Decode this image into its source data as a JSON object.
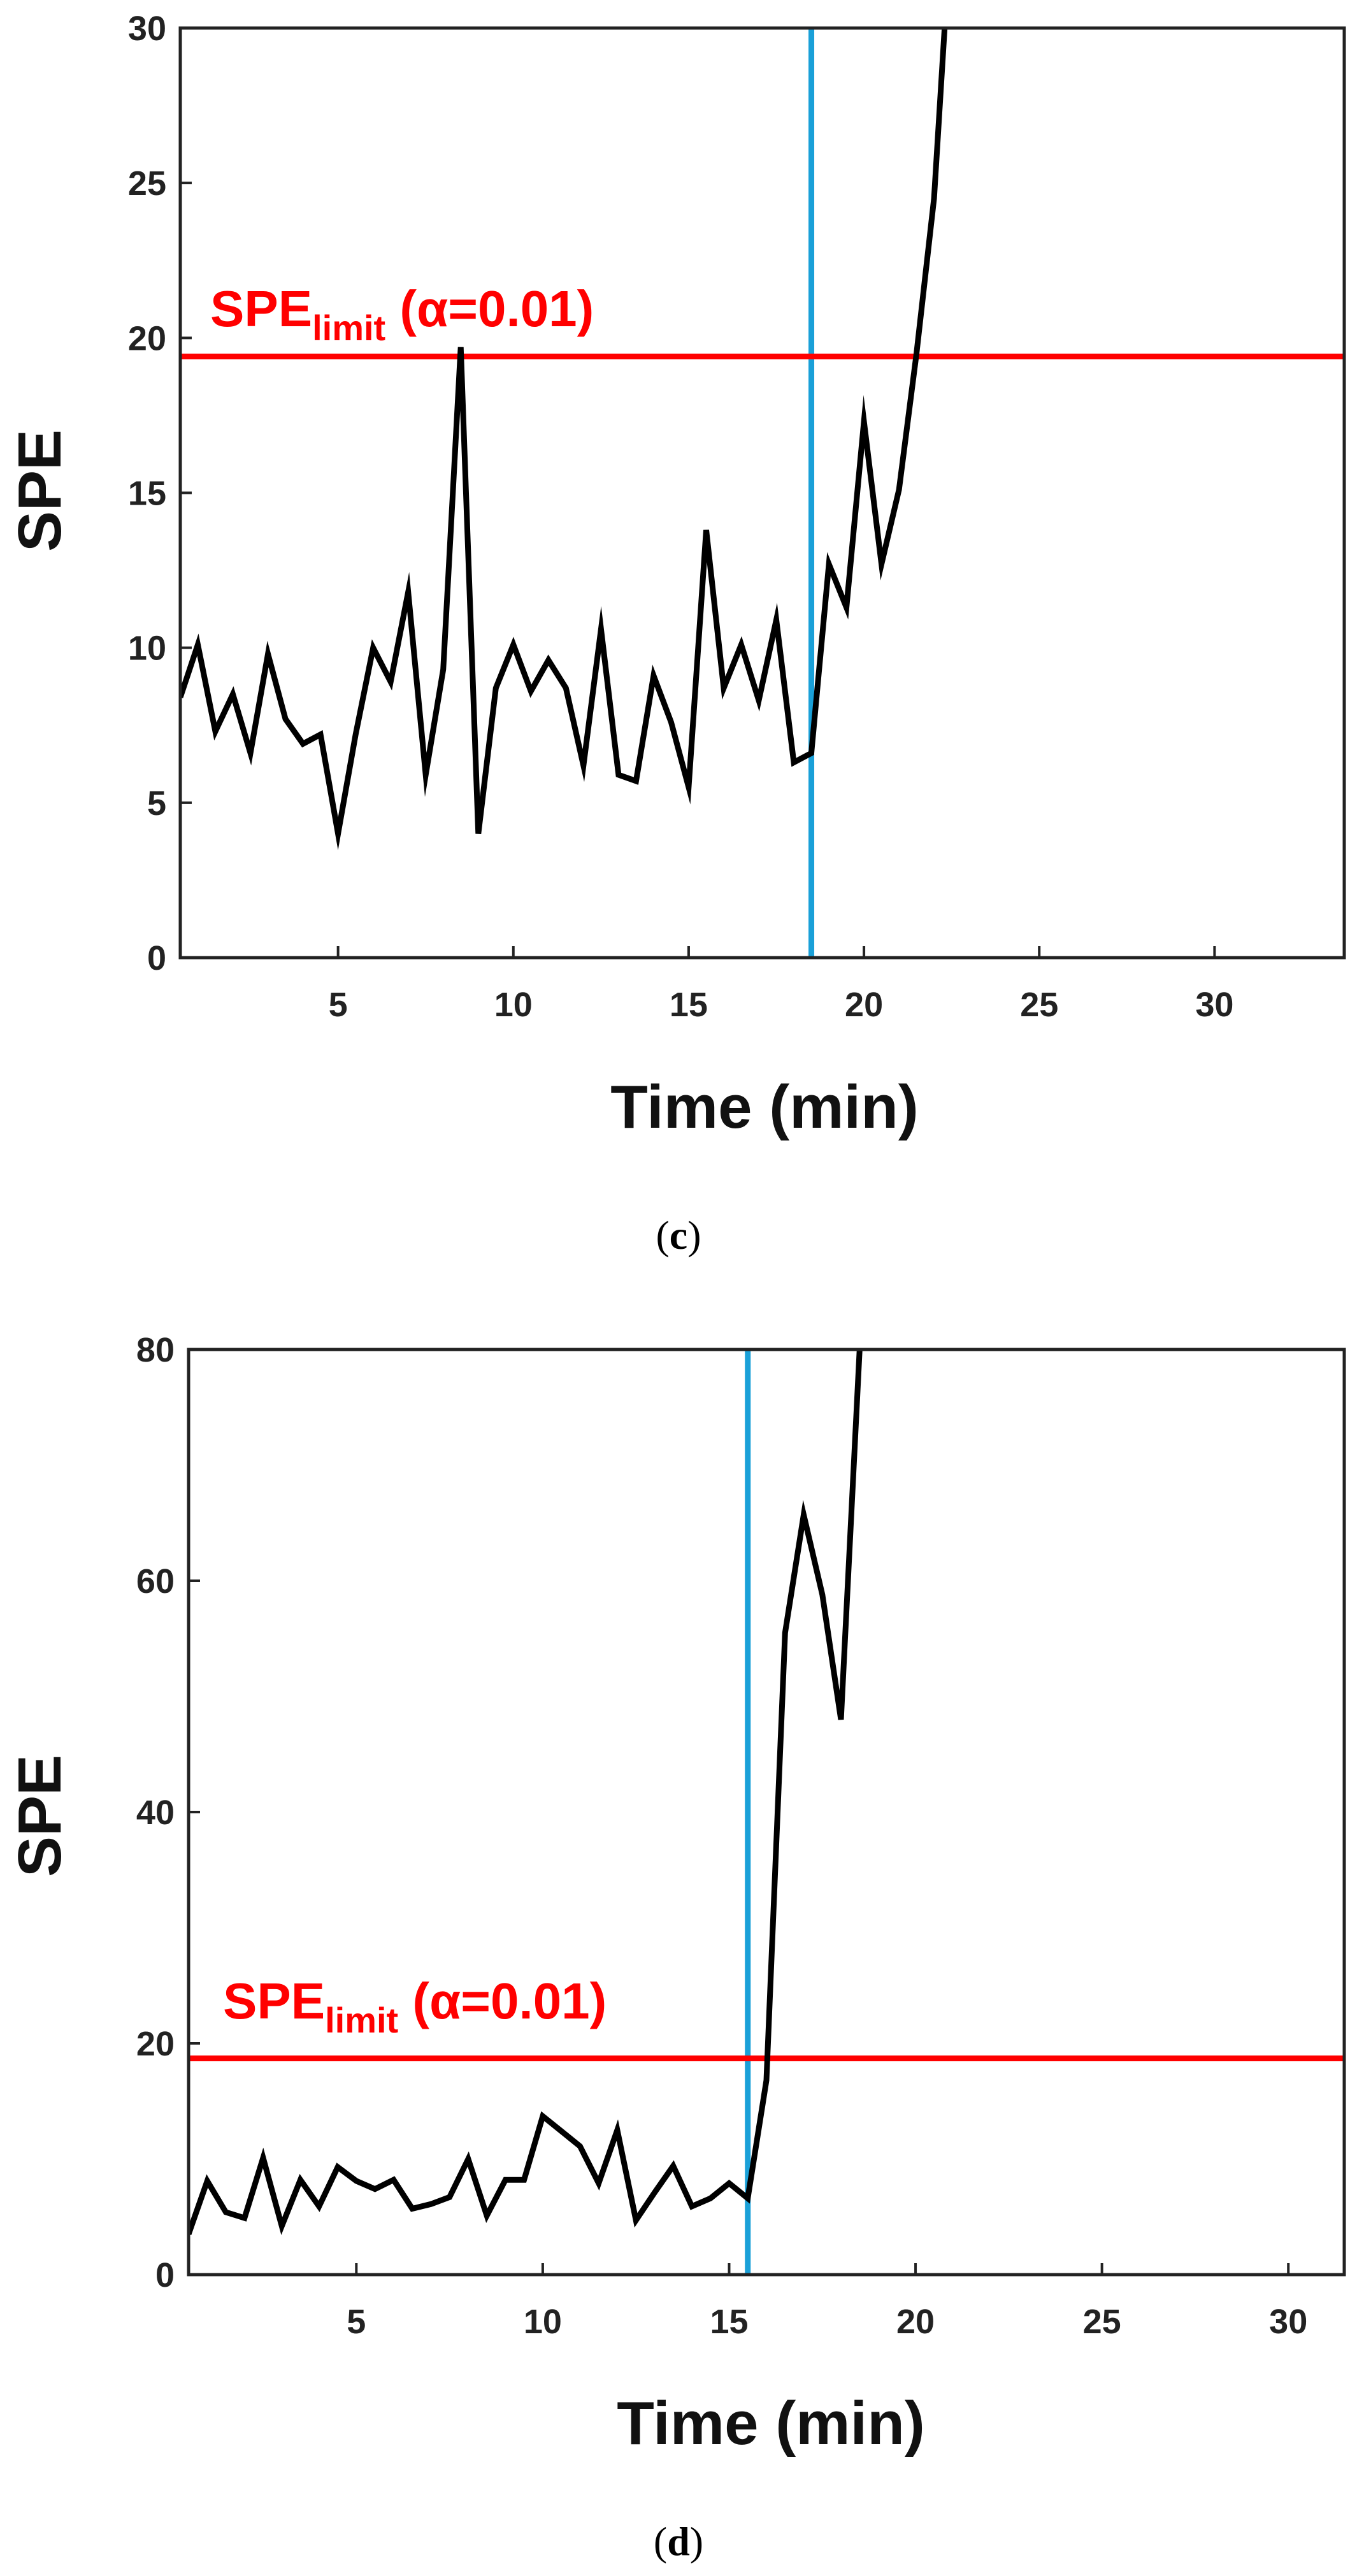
{
  "chart_data": [
    {
      "type": "line",
      "panel_label": "c",
      "xlabel": "Time  (min)",
      "ylabel": "SPE",
      "xlim": [
        0.5,
        33.7
      ],
      "ylim": [
        0,
        30
      ],
      "xticks": [
        5,
        10,
        15,
        20,
        25,
        30
      ],
      "yticks": [
        0,
        5,
        10,
        15,
        20,
        25,
        30
      ],
      "grid": false,
      "colors": {
        "series": "#000000",
        "limit": "#ff0000",
        "fault": "#1aa0d8"
      },
      "limit": {
        "label_main": "SPE",
        "label_sub": "limit",
        "label_suffix": " (α=0.01)",
        "value": 19.4
      },
      "fault_time": 18.5,
      "series": [
        {
          "x": [
            0.5,
            1.0,
            1.5,
            2.0,
            2.5,
            3.0,
            3.5,
            4.0,
            4.5,
            5.0,
            5.5,
            6.0,
            6.5,
            7.0,
            7.5,
            8.0,
            8.5,
            9.0,
            9.5,
            10.0,
            10.5,
            11.0,
            11.5,
            12.0,
            12.5,
            13.0,
            13.5,
            14.0,
            14.5,
            15.0,
            15.5,
            16.0,
            16.5,
            17.0,
            17.5,
            18.0,
            18.5,
            19.0,
            19.5,
            20.0,
            20.5,
            21.0,
            21.5,
            22.0,
            22.3
          ],
          "y": [
            8.4,
            10.1,
            7.3,
            8.5,
            6.6,
            9.8,
            7.7,
            6.9,
            7.2,
            4.0,
            7.2,
            10.0,
            8.9,
            11.8,
            5.9,
            9.3,
            19.7,
            4.0,
            8.7,
            10.1,
            8.6,
            9.6,
            8.7,
            6.2,
            10.6,
            5.9,
            5.7,
            9.1,
            7.6,
            5.5,
            13.8,
            8.7,
            10.1,
            8.3,
            10.9,
            6.3,
            6.6,
            12.7,
            11.3,
            17.3,
            12.7,
            15.1,
            19.5,
            24.5,
            30.0
          ]
        }
      ]
    },
    {
      "type": "line",
      "panel_label": "d",
      "xlabel": "Time  (min)",
      "ylabel": "SPE",
      "xlim": [
        0.5,
        31.5
      ],
      "ylim": [
        0,
        80
      ],
      "xticks": [
        5,
        10,
        15,
        20,
        25,
        30
      ],
      "yticks": [
        0,
        20,
        40,
        60,
        80
      ],
      "grid": false,
      "colors": {
        "series": "#000000",
        "limit": "#ff0000",
        "fault": "#1aa0d8"
      },
      "limit": {
        "label_main": "SPE",
        "label_sub": "limit",
        "label_suffix": " (α=0.01)",
        "value": 18.7
      },
      "fault_time": 15.5,
      "series": [
        {
          "x": [
            0.5,
            1.0,
            1.5,
            2.0,
            2.5,
            3.0,
            3.5,
            4.0,
            4.5,
            5.0,
            5.5,
            6.0,
            6.5,
            7.0,
            7.5,
            8.0,
            8.5,
            9.0,
            9.5,
            10.0,
            10.5,
            11.0,
            11.5,
            12.0,
            12.5,
            13.0,
            13.5,
            14.0,
            14.5,
            15.0,
            15.5,
            16.0,
            16.5,
            17.0,
            17.5,
            18.0,
            18.5
          ],
          "y": [
            3.5,
            8.1,
            5.4,
            4.9,
            10.1,
            4.2,
            8.2,
            5.9,
            9.3,
            8.1,
            7.4,
            8.2,
            5.7,
            6.1,
            6.7,
            10.0,
            5.1,
            8.2,
            8.2,
            13.7,
            12.4,
            11.1,
            7.9,
            12.5,
            4.7,
            7.1,
            9.4,
            5.9,
            6.6,
            7.9,
            6.6,
            16.8,
            55.5,
            65.7,
            58.8,
            48.0,
            80.0
          ]
        }
      ]
    }
  ]
}
